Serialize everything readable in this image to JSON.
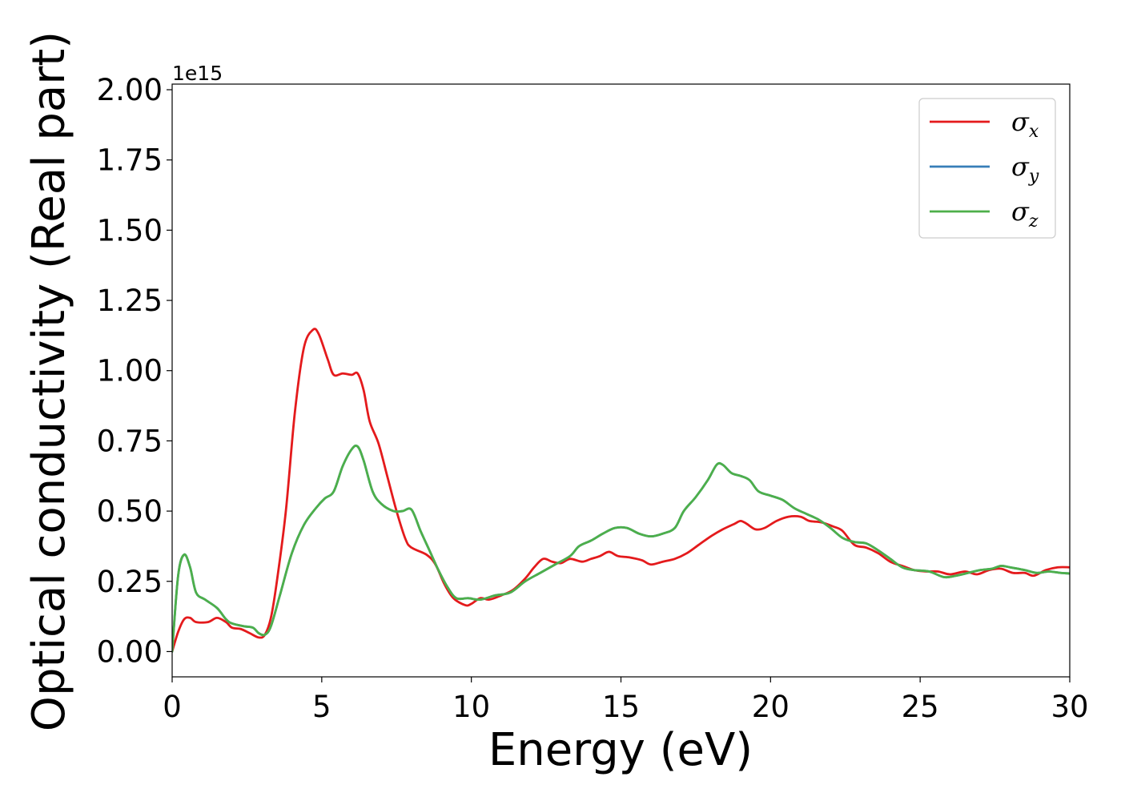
{
  "chart_data": {
    "type": "line",
    "xlabel": "Energy (eV)",
    "ylabel": "Optical conductivity (Real part)",
    "y_offset_text": "1e15",
    "xlim": [
      0,
      30
    ],
    "ylim": [
      -0.09,
      2.02
    ],
    "y_scale_factor": 1000000000000000.0,
    "x_ticks": [
      0,
      5,
      10,
      15,
      20,
      25,
      30
    ],
    "x_tick_labels": [
      "0",
      "5",
      "10",
      "15",
      "20",
      "25",
      "30"
    ],
    "y_ticks": [
      0.0,
      0.25,
      0.5,
      0.75,
      1.0,
      1.25,
      1.5,
      1.75,
      2.0
    ],
    "y_tick_labels": [
      "0.00",
      "0.25",
      "0.50",
      "0.75",
      "1.00",
      "1.25",
      "1.50",
      "1.75",
      "2.00"
    ],
    "grid": false,
    "legend_position": "top-right",
    "series": [
      {
        "name": "σx",
        "symbol": "σ",
        "subscript": "x",
        "color": "#e41a1c",
        "points": [
          [
            0,
            0
          ],
          [
            0.2,
            0.07
          ],
          [
            0.4,
            0.115
          ],
          [
            0.6,
            0.12
          ],
          [
            0.8,
            0.105
          ],
          [
            1.2,
            0.105
          ],
          [
            1.5,
            0.12
          ],
          [
            1.8,
            0.105
          ],
          [
            2.0,
            0.085
          ],
          [
            2.3,
            0.08
          ],
          [
            2.6,
            0.065
          ],
          [
            2.9,
            0.05
          ],
          [
            3.1,
            0.06
          ],
          [
            3.3,
            0.12
          ],
          [
            3.5,
            0.25
          ],
          [
            3.8,
            0.5
          ],
          [
            4.1,
            0.85
          ],
          [
            4.4,
            1.08
          ],
          [
            4.7,
            1.145
          ],
          [
            4.9,
            1.13
          ],
          [
            5.2,
            1.04
          ],
          [
            5.4,
            0.985
          ],
          [
            5.7,
            0.99
          ],
          [
            6.0,
            0.985
          ],
          [
            6.2,
            0.99
          ],
          [
            6.4,
            0.93
          ],
          [
            6.6,
            0.82
          ],
          [
            6.9,
            0.74
          ],
          [
            7.2,
            0.62
          ],
          [
            7.5,
            0.5
          ],
          [
            7.8,
            0.4
          ],
          [
            8.0,
            0.37
          ],
          [
            8.5,
            0.345
          ],
          [
            8.8,
            0.31
          ],
          [
            9.1,
            0.24
          ],
          [
            9.4,
            0.19
          ],
          [
            9.8,
            0.165
          ],
          [
            10.0,
            0.17
          ],
          [
            10.3,
            0.19
          ],
          [
            10.6,
            0.185
          ],
          [
            11.0,
            0.2
          ],
          [
            11.4,
            0.22
          ],
          [
            11.8,
            0.26
          ],
          [
            12.1,
            0.3
          ],
          [
            12.4,
            0.33
          ],
          [
            12.7,
            0.32
          ],
          [
            13.0,
            0.315
          ],
          [
            13.3,
            0.33
          ],
          [
            13.7,
            0.32
          ],
          [
            14.0,
            0.33
          ],
          [
            14.3,
            0.34
          ],
          [
            14.6,
            0.355
          ],
          [
            14.9,
            0.34
          ],
          [
            15.3,
            0.335
          ],
          [
            15.7,
            0.325
          ],
          [
            16.0,
            0.31
          ],
          [
            16.4,
            0.32
          ],
          [
            16.8,
            0.33
          ],
          [
            17.2,
            0.35
          ],
          [
            17.6,
            0.38
          ],
          [
            18.0,
            0.41
          ],
          [
            18.4,
            0.435
          ],
          [
            18.8,
            0.455
          ],
          [
            19.0,
            0.465
          ],
          [
            19.2,
            0.455
          ],
          [
            19.5,
            0.435
          ],
          [
            19.8,
            0.44
          ],
          [
            20.2,
            0.465
          ],
          [
            20.6,
            0.48
          ],
          [
            21.0,
            0.48
          ],
          [
            21.3,
            0.465
          ],
          [
            21.7,
            0.46
          ],
          [
            22.1,
            0.445
          ],
          [
            22.4,
            0.43
          ],
          [
            22.8,
            0.38
          ],
          [
            23.2,
            0.37
          ],
          [
            23.6,
            0.35
          ],
          [
            24.0,
            0.32
          ],
          [
            24.4,
            0.305
          ],
          [
            24.8,
            0.29
          ],
          [
            25.2,
            0.285
          ],
          [
            25.6,
            0.285
          ],
          [
            26.0,
            0.275
          ],
          [
            26.5,
            0.285
          ],
          [
            26.9,
            0.275
          ],
          [
            27.3,
            0.29
          ],
          [
            27.7,
            0.295
          ],
          [
            28.1,
            0.28
          ],
          [
            28.5,
            0.28
          ],
          [
            28.8,
            0.27
          ],
          [
            29.2,
            0.29
          ],
          [
            29.6,
            0.3
          ],
          [
            30.0,
            0.3
          ]
        ]
      },
      {
        "name": "σy",
        "symbol": "σ",
        "subscript": "y",
        "color": "#377eb8",
        "points": [
          [
            0,
            0
          ],
          [
            0.2,
            0.27
          ],
          [
            0.4,
            0.345
          ],
          [
            0.6,
            0.3
          ],
          [
            0.8,
            0.21
          ],
          [
            1.1,
            0.185
          ],
          [
            1.5,
            0.155
          ],
          [
            1.8,
            0.115
          ],
          [
            2.0,
            0.1
          ],
          [
            2.4,
            0.09
          ],
          [
            2.7,
            0.085
          ],
          [
            2.9,
            0.065
          ],
          [
            3.1,
            0.06
          ],
          [
            3.3,
            0.09
          ],
          [
            3.6,
            0.2
          ],
          [
            4.0,
            0.35
          ],
          [
            4.4,
            0.45
          ],
          [
            4.8,
            0.51
          ],
          [
            5.1,
            0.545
          ],
          [
            5.4,
            0.57
          ],
          [
            5.7,
            0.66
          ],
          [
            6.0,
            0.72
          ],
          [
            6.2,
            0.73
          ],
          [
            6.4,
            0.68
          ],
          [
            6.7,
            0.57
          ],
          [
            7.0,
            0.525
          ],
          [
            7.4,
            0.5
          ],
          [
            7.7,
            0.5
          ],
          [
            8.0,
            0.505
          ],
          [
            8.3,
            0.43
          ],
          [
            8.6,
            0.36
          ],
          [
            8.9,
            0.29
          ],
          [
            9.2,
            0.23
          ],
          [
            9.5,
            0.19
          ],
          [
            9.9,
            0.19
          ],
          [
            10.3,
            0.185
          ],
          [
            10.8,
            0.2
          ],
          [
            11.3,
            0.21
          ],
          [
            11.8,
            0.25
          ],
          [
            12.3,
            0.28
          ],
          [
            12.8,
            0.31
          ],
          [
            13.3,
            0.34
          ],
          [
            13.6,
            0.375
          ],
          [
            14.0,
            0.395
          ],
          [
            14.4,
            0.42
          ],
          [
            14.8,
            0.44
          ],
          [
            15.2,
            0.44
          ],
          [
            15.6,
            0.42
          ],
          [
            16.0,
            0.41
          ],
          [
            16.4,
            0.42
          ],
          [
            16.8,
            0.44
          ],
          [
            17.1,
            0.5
          ],
          [
            17.5,
            0.55
          ],
          [
            17.9,
            0.61
          ],
          [
            18.2,
            0.665
          ],
          [
            18.4,
            0.665
          ],
          [
            18.7,
            0.635
          ],
          [
            19.0,
            0.625
          ],
          [
            19.3,
            0.61
          ],
          [
            19.6,
            0.57
          ],
          [
            20.0,
            0.555
          ],
          [
            20.4,
            0.54
          ],
          [
            20.8,
            0.51
          ],
          [
            21.2,
            0.49
          ],
          [
            21.6,
            0.47
          ],
          [
            22.0,
            0.44
          ],
          [
            22.4,
            0.405
          ],
          [
            22.8,
            0.39
          ],
          [
            23.2,
            0.385
          ],
          [
            23.6,
            0.36
          ],
          [
            24.0,
            0.33
          ],
          [
            24.4,
            0.3
          ],
          [
            24.8,
            0.29
          ],
          [
            25.3,
            0.285
          ],
          [
            25.8,
            0.265
          ],
          [
            26.2,
            0.27
          ],
          [
            26.6,
            0.28
          ],
          [
            27.0,
            0.29
          ],
          [
            27.4,
            0.295
          ],
          [
            27.7,
            0.305
          ],
          [
            28.0,
            0.3
          ],
          [
            28.5,
            0.29
          ],
          [
            28.9,
            0.28
          ],
          [
            29.3,
            0.285
          ],
          [
            29.7,
            0.28
          ],
          [
            30.0,
            0.278
          ]
        ]
      },
      {
        "name": "σz",
        "symbol": "σ",
        "subscript": "z",
        "color": "#4daf4a",
        "points": [
          [
            0,
            0
          ],
          [
            0.2,
            0.27
          ],
          [
            0.4,
            0.345
          ],
          [
            0.6,
            0.3
          ],
          [
            0.8,
            0.21
          ],
          [
            1.1,
            0.185
          ],
          [
            1.5,
            0.155
          ],
          [
            1.8,
            0.115
          ],
          [
            2.0,
            0.1
          ],
          [
            2.4,
            0.09
          ],
          [
            2.7,
            0.085
          ],
          [
            2.9,
            0.065
          ],
          [
            3.1,
            0.06
          ],
          [
            3.3,
            0.09
          ],
          [
            3.6,
            0.2
          ],
          [
            4.0,
            0.35
          ],
          [
            4.4,
            0.45
          ],
          [
            4.8,
            0.51
          ],
          [
            5.1,
            0.545
          ],
          [
            5.4,
            0.57
          ],
          [
            5.7,
            0.66
          ],
          [
            6.0,
            0.72
          ],
          [
            6.2,
            0.73
          ],
          [
            6.4,
            0.68
          ],
          [
            6.7,
            0.57
          ],
          [
            7.0,
            0.525
          ],
          [
            7.4,
            0.5
          ],
          [
            7.7,
            0.5
          ],
          [
            8.0,
            0.505
          ],
          [
            8.3,
            0.43
          ],
          [
            8.6,
            0.36
          ],
          [
            8.9,
            0.29
          ],
          [
            9.2,
            0.23
          ],
          [
            9.5,
            0.19
          ],
          [
            9.9,
            0.19
          ],
          [
            10.3,
            0.185
          ],
          [
            10.8,
            0.2
          ],
          [
            11.3,
            0.21
          ],
          [
            11.8,
            0.25
          ],
          [
            12.3,
            0.28
          ],
          [
            12.8,
            0.31
          ],
          [
            13.3,
            0.34
          ],
          [
            13.6,
            0.375
          ],
          [
            14.0,
            0.395
          ],
          [
            14.4,
            0.42
          ],
          [
            14.8,
            0.44
          ],
          [
            15.2,
            0.44
          ],
          [
            15.6,
            0.42
          ],
          [
            16.0,
            0.41
          ],
          [
            16.4,
            0.42
          ],
          [
            16.8,
            0.44
          ],
          [
            17.1,
            0.5
          ],
          [
            17.5,
            0.55
          ],
          [
            17.9,
            0.61
          ],
          [
            18.2,
            0.665
          ],
          [
            18.4,
            0.665
          ],
          [
            18.7,
            0.635
          ],
          [
            19.0,
            0.625
          ],
          [
            19.3,
            0.61
          ],
          [
            19.6,
            0.57
          ],
          [
            20.0,
            0.555
          ],
          [
            20.4,
            0.54
          ],
          [
            20.8,
            0.51
          ],
          [
            21.2,
            0.49
          ],
          [
            21.6,
            0.47
          ],
          [
            22.0,
            0.44
          ],
          [
            22.4,
            0.405
          ],
          [
            22.8,
            0.39
          ],
          [
            23.2,
            0.385
          ],
          [
            23.6,
            0.36
          ],
          [
            24.0,
            0.33
          ],
          [
            24.4,
            0.3
          ],
          [
            24.8,
            0.29
          ],
          [
            25.3,
            0.285
          ],
          [
            25.8,
            0.265
          ],
          [
            26.2,
            0.27
          ],
          [
            26.6,
            0.28
          ],
          [
            27.0,
            0.29
          ],
          [
            27.4,
            0.295
          ],
          [
            27.7,
            0.305
          ],
          [
            28.0,
            0.3
          ],
          [
            28.5,
            0.29
          ],
          [
            28.9,
            0.28
          ],
          [
            29.3,
            0.285
          ],
          [
            29.7,
            0.28
          ],
          [
            30.0,
            0.278
          ]
        ]
      }
    ]
  }
}
